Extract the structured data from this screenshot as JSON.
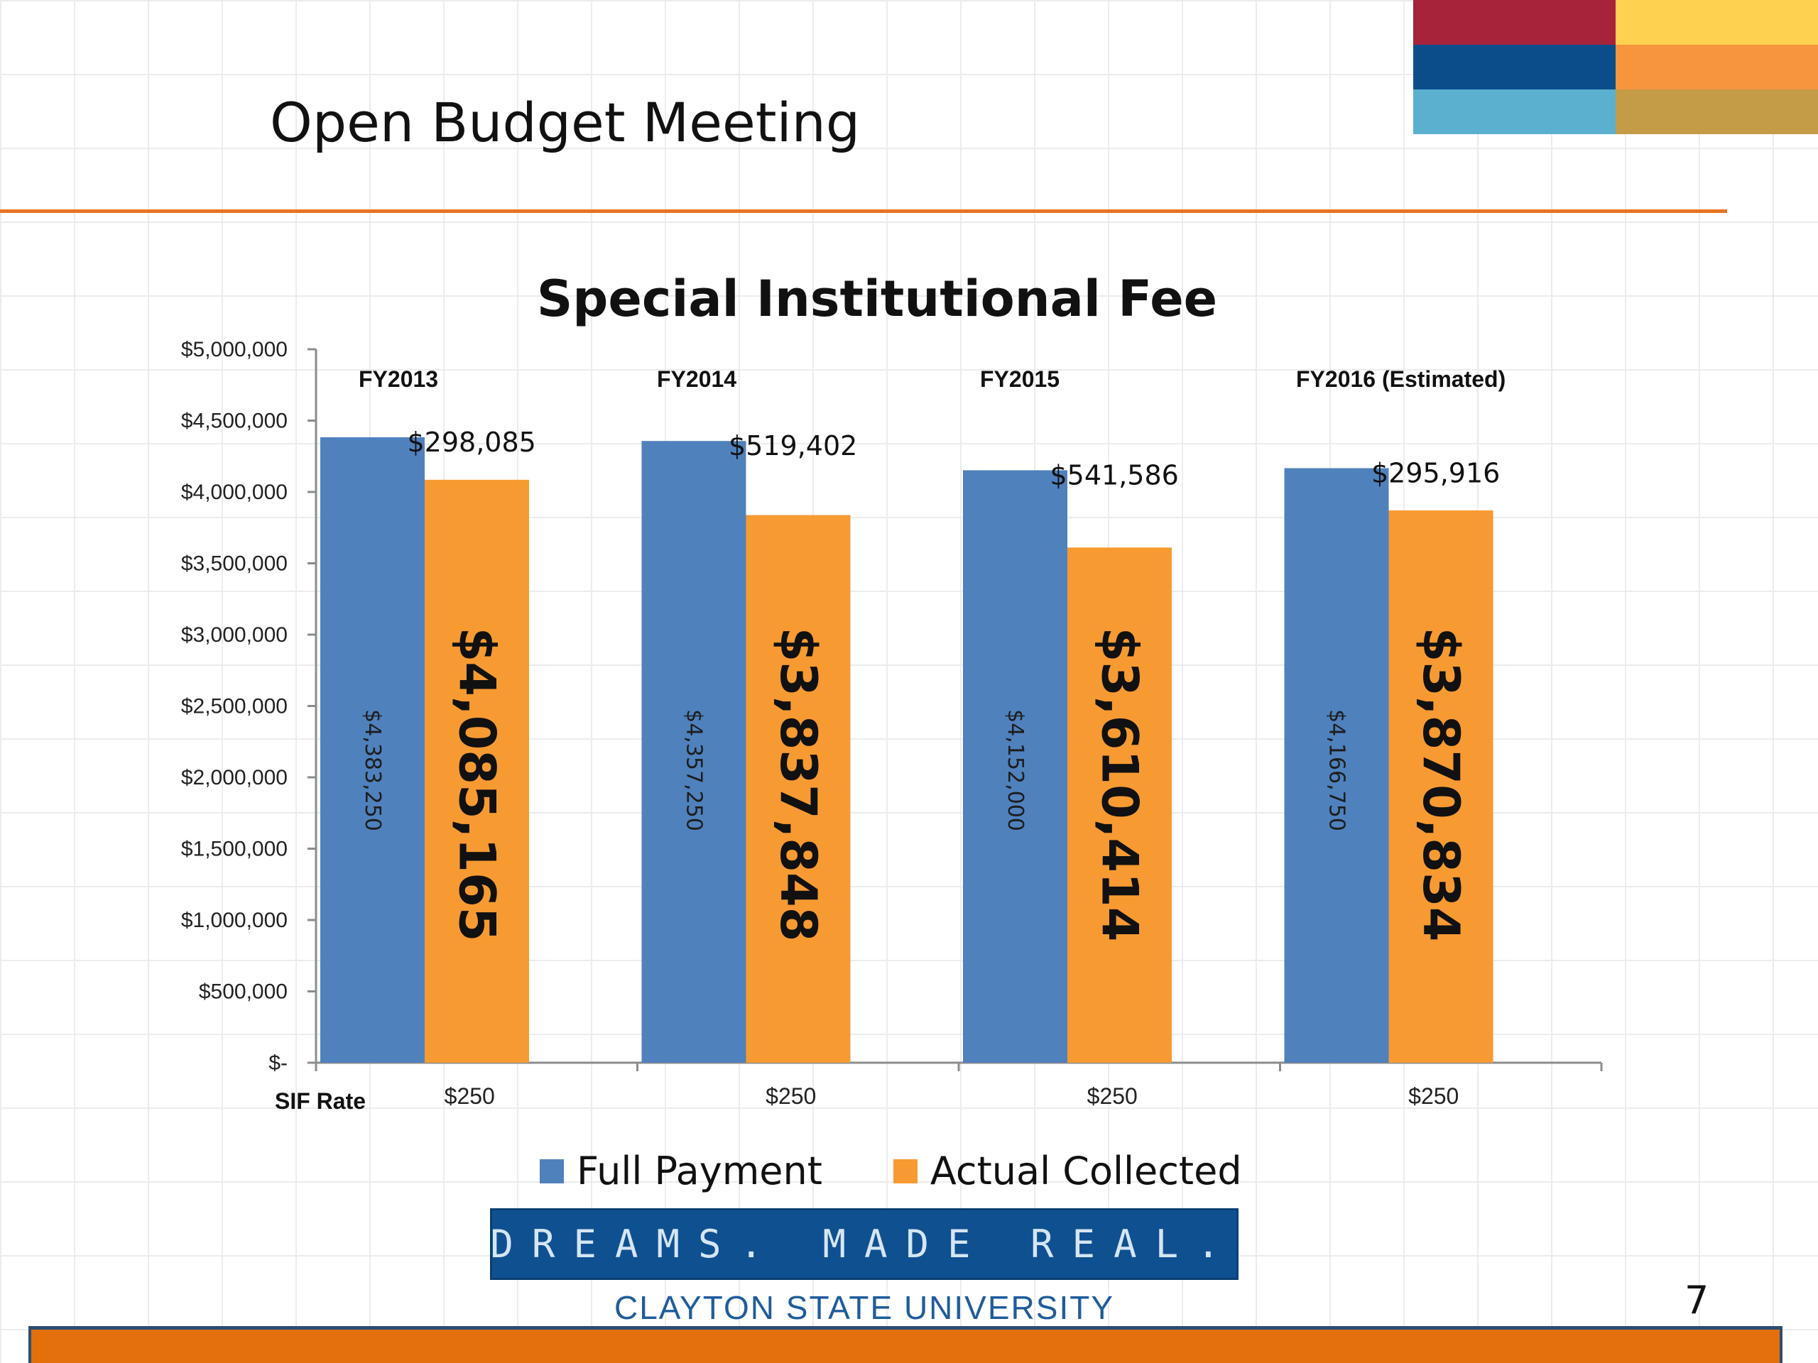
{
  "slide": {
    "title": "Open Budget Meeting",
    "page_number": "7",
    "banner_text": "DREAMS. MADE REAL.",
    "university": "CLAYTON STATE UNIVERSITY",
    "accent_colors": [
      "#a6233a",
      "#ffd150",
      "#0b4d8a",
      "#f7943e",
      "#5bb0d0",
      "#c49b46"
    ],
    "footer_color": "#e4700d"
  },
  "chart_data": {
    "type": "bar",
    "title": "Special Institutional Fee",
    "categories": [
      "FY2013",
      "FY2014",
      "FY2015",
      "FY2016 (Estimated)"
    ],
    "series": [
      {
        "name": "Full Payment",
        "color": "#4f81bd",
        "values": [
          4383250,
          4357250,
          4152000,
          4166750
        ],
        "labels": [
          "$4,383,250",
          "$4,357,250",
          "$4,152,000",
          "$4,166,750"
        ]
      },
      {
        "name": "Actual Collected",
        "color": "#f79a32",
        "values": [
          4085165,
          3837848,
          3610414,
          3870834
        ],
        "labels": [
          "$4,085,165",
          "$3,837,848",
          "$3,610,414",
          "$3,870,834"
        ]
      }
    ],
    "differences": [
      "$298,085",
      "$519,402",
      "$541,586",
      "$295,916"
    ],
    "rate_label": "SIF Rate",
    "rates": [
      "$250",
      "$250",
      "$250",
      "$250"
    ],
    "ylim": [
      0,
      5000000
    ],
    "yticks": [
      0,
      500000,
      1000000,
      1500000,
      2000000,
      2500000,
      3000000,
      3500000,
      4000000,
      4500000,
      5000000
    ],
    "ytick_labels": [
      "$-",
      "$500,000",
      "$1,000,000",
      "$1,500,000",
      "$2,000,000",
      "$2,500,000",
      "$3,000,000",
      "$3,500,000",
      "$4,000,000",
      "$4,500,000",
      "$5,000,000"
    ],
    "grid": false,
    "legend_position": "bottom"
  }
}
